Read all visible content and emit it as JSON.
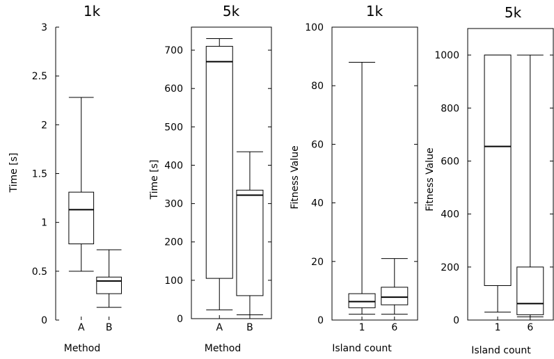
{
  "chart_data": [
    {
      "type": "box",
      "title": "1k",
      "xlabel": "Method",
      "ylabel": "Time [s]",
      "ylim": [
        0,
        3
      ],
      "yticks": [
        "0",
        "0.5",
        "1",
        "1.5",
        "2",
        "2.5",
        "3"
      ],
      "yticks_values": [
        0,
        0.5,
        1,
        1.5,
        2,
        2.5,
        3
      ],
      "categories": [
        "A",
        "B"
      ],
      "boxes": [
        {
          "category": "A",
          "min": 0.5,
          "q1": 0.78,
          "median": 1.13,
          "q3": 1.31,
          "max": 2.28
        },
        {
          "category": "B",
          "min": 0.13,
          "q1": 0.27,
          "median": 0.4,
          "q3": 0.44,
          "max": 0.72
        }
      ],
      "frame": "left-only"
    },
    {
      "type": "box",
      "title": "5k",
      "xlabel": "Method",
      "ylabel": "Time [s]",
      "ylim": [
        0,
        760
      ],
      "yticks": [
        "0",
        "100",
        "200",
        "300",
        "400",
        "500",
        "600",
        "700"
      ],
      "yticks_values": [
        0,
        100,
        200,
        300,
        400,
        500,
        600,
        700
      ],
      "categories": [
        "A",
        "B"
      ],
      "boxes": [
        {
          "category": "A",
          "min": 23,
          "q1": 105,
          "median": 670,
          "q3": 710,
          "max": 730
        },
        {
          "category": "B",
          "min": 10,
          "q1": 60,
          "median": 322,
          "q3": 335,
          "max": 435
        }
      ],
      "frame": "full"
    },
    {
      "type": "box",
      "title": "1k",
      "xlabel": "Island count",
      "ylabel": "Fitness Value",
      "ylim": [
        0,
        100
      ],
      "yticks": [
        "0",
        "20",
        "40",
        "60",
        "80",
        "100"
      ],
      "yticks_values": [
        0,
        20,
        40,
        60,
        80,
        100
      ],
      "categories": [
        "1",
        "6"
      ],
      "boxes": [
        {
          "category": "1",
          "min": 2,
          "q1": 4.2,
          "median": 6.3,
          "q3": 9,
          "max": 88
        },
        {
          "category": "6",
          "min": 2,
          "q1": 5.2,
          "median": 7.8,
          "q3": 11.2,
          "max": 21
        }
      ],
      "frame": "full"
    },
    {
      "type": "box",
      "title": "5k",
      "xlabel": "Island count",
      "ylabel": "Fitness Value",
      "ylim": [
        0,
        1100
      ],
      "yticks": [
        "0",
        "200",
        "400",
        "600",
        "800",
        "1000"
      ],
      "yticks_values": [
        0,
        200,
        400,
        600,
        800,
        1000
      ],
      "categories": [
        "1",
        "6"
      ],
      "boxes": [
        {
          "category": "1",
          "min": 30,
          "q1": 130,
          "median": 655,
          "q3": 1000,
          "max": 1000
        },
        {
          "category": "6",
          "min": 12,
          "q1": 20,
          "median": 62,
          "q3": 200,
          "max": 1000
        }
      ],
      "frame": "full"
    }
  ]
}
